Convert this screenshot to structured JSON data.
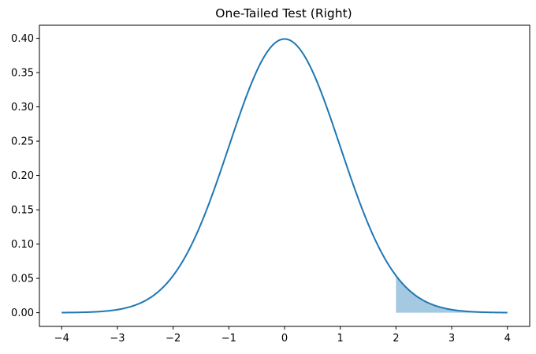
{
  "chart_data": {
    "type": "line",
    "title": "One-Tailed Test (Right)",
    "xlabel": "",
    "ylabel": "",
    "xlim": [
      -4.4,
      4.4
    ],
    "ylim": [
      -0.02,
      0.419
    ],
    "x_ticks": [
      -4,
      -3,
      -2,
      -1,
      0,
      1,
      2,
      3,
      4
    ],
    "x_tick_labels": [
      "−4",
      "−3",
      "−2",
      "−1",
      "0",
      "1",
      "2",
      "3",
      "4"
    ],
    "y_ticks": [
      0.0,
      0.05,
      0.1,
      0.15,
      0.2,
      0.25,
      0.3,
      0.35,
      0.4
    ],
    "y_tick_labels": [
      "0.00",
      "0.05",
      "0.10",
      "0.15",
      "0.20",
      "0.25",
      "0.30",
      "0.35",
      "0.40"
    ],
    "grid": false,
    "series": [
      {
        "color": "#1f77b4",
        "x": [
          -4,
          -3.5,
          -3,
          -2.5,
          -2,
          -1.5,
          -1,
          -0.5,
          0,
          0.5,
          1,
          1.5,
          2,
          2.5,
          3,
          3.5,
          4
        ],
        "y": [
          0.0001,
          0.0009,
          0.0044,
          0.0175,
          0.054,
          0.1295,
          0.242,
          0.3521,
          0.3989,
          0.3521,
          0.242,
          0.1295,
          0.054,
          0.0175,
          0.0044,
          0.0009,
          0.0001
        ]
      }
    ],
    "shaded_region": {
      "x_from": 2,
      "x_to": 4,
      "color": "#1f77b4",
      "alpha": 0.4
    }
  }
}
